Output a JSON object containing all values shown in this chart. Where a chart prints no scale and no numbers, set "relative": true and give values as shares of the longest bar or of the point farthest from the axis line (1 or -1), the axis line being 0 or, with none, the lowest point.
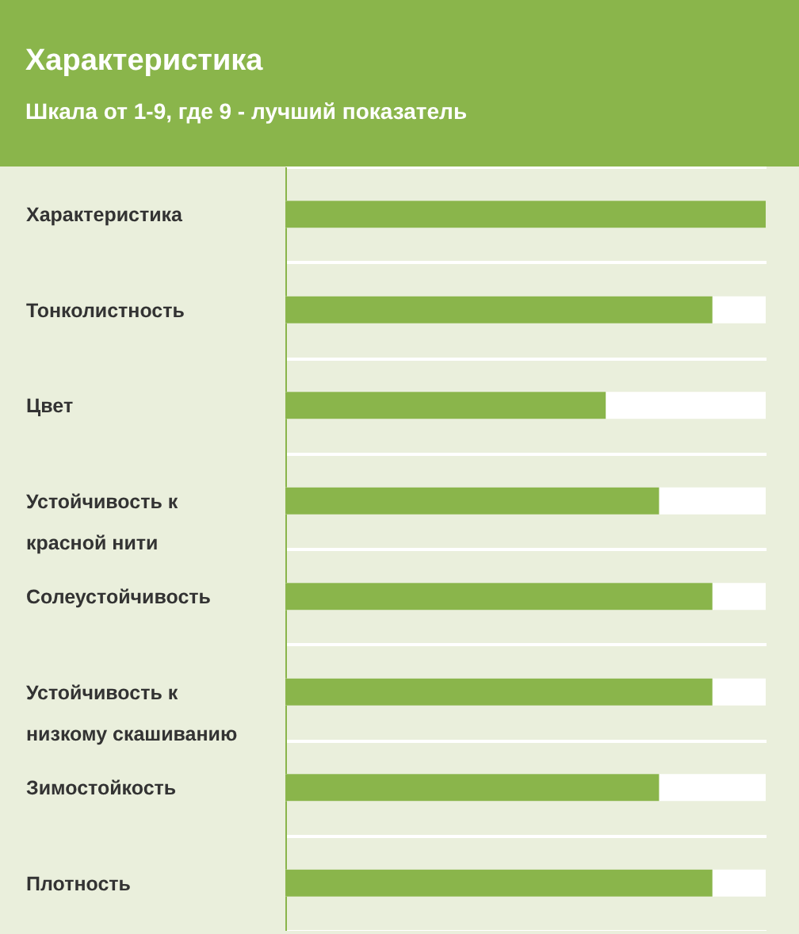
{
  "chart_data": {
    "type": "bar",
    "orientation": "horizontal",
    "title": "Характеристика",
    "subtitle": "Шкала от 1-9, где 9 - лучший показатель",
    "categories": [
      "Характеристика",
      "Тонколистность",
      "Цвет",
      "Устойчивость к красной нити",
      "Солеустойчивость",
      "Устойчивость к низкому скашиванию",
      "Зимостойкость",
      "Плотность"
    ],
    "values": [
      1,
      0.889,
      0.667,
      0.778,
      0.889,
      0.889,
      0.778,
      0.889
    ],
    "color": "#8ab54b",
    "relative": true,
    "tick_labels": "y",
    "grid": "y"
  }
}
